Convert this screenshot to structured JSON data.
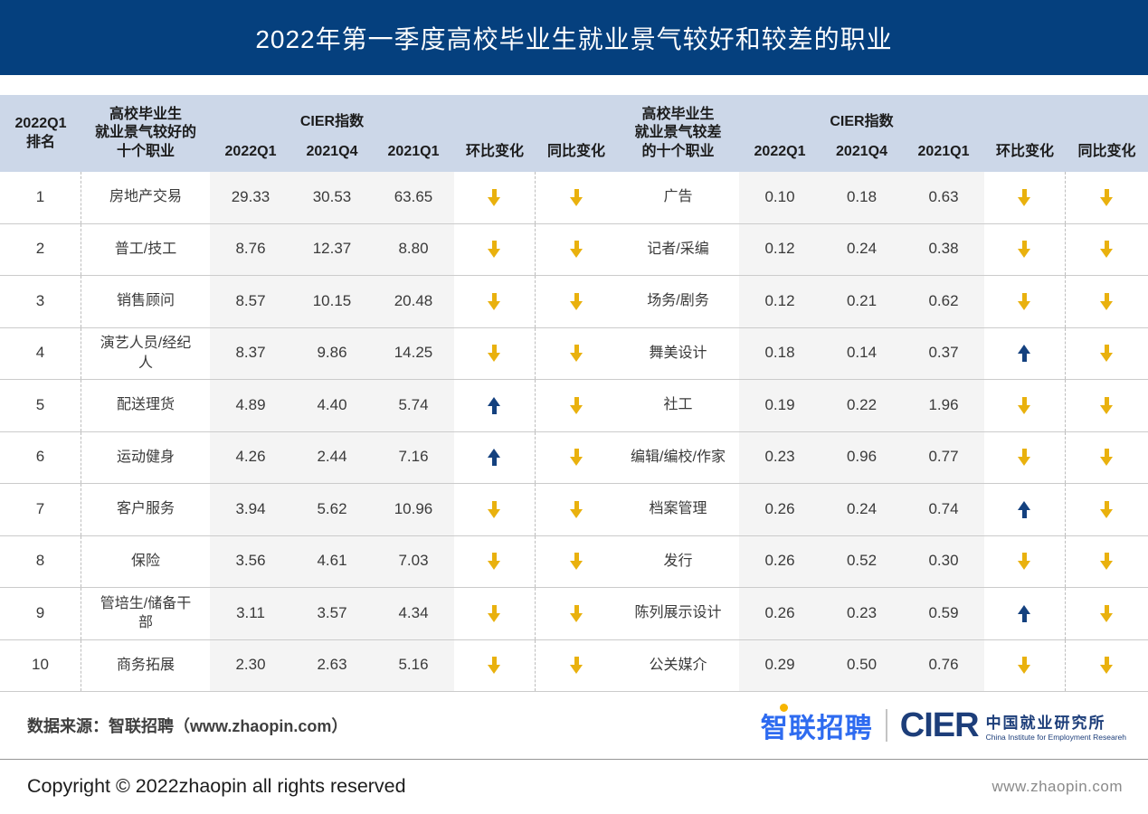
{
  "title": "2022年第一季度高校毕业生就业景气较好和较差的职业",
  "chart_data": {
    "type": "table",
    "title": "2022年第一季度高校毕业生就业景气较好和较差的职业",
    "headers": {
      "rank": [
        "2022Q1",
        "排名"
      ],
      "good_occupation": [
        "高校毕业生",
        "就业景气较好的",
        "十个职业"
      ],
      "bad_occupation": [
        "高校毕业生",
        "就业景气较差",
        "的十个职业"
      ],
      "cier_index": "CIER指数",
      "metrics": [
        "2022Q1",
        "2021Q4",
        "2021Q1",
        "环比变化",
        "同比变化"
      ]
    },
    "rows": [
      {
        "rank": "1",
        "good": {
          "occupation": "房地产交易",
          "cier_2022q1": "29.33",
          "cier_2021q4": "30.53",
          "cier_2021q1": "63.65",
          "mom": "down",
          "yoy": "down"
        },
        "bad": {
          "occupation": "广告",
          "cier_2022q1": "0.10",
          "cier_2021q4": "0.18",
          "cier_2021q1": "0.63",
          "mom": "down",
          "yoy": "down"
        }
      },
      {
        "rank": "2",
        "good": {
          "occupation": "普工/技工",
          "cier_2022q1": "8.76",
          "cier_2021q4": "12.37",
          "cier_2021q1": "8.80",
          "mom": "down",
          "yoy": "down"
        },
        "bad": {
          "occupation": "记者/采编",
          "cier_2022q1": "0.12",
          "cier_2021q4": "0.24",
          "cier_2021q1": "0.38",
          "mom": "down",
          "yoy": "down"
        }
      },
      {
        "rank": "3",
        "good": {
          "occupation": "销售顾问",
          "cier_2022q1": "8.57",
          "cier_2021q4": "10.15",
          "cier_2021q1": "20.48",
          "mom": "down",
          "yoy": "down"
        },
        "bad": {
          "occupation": "场务/剧务",
          "cier_2022q1": "0.12",
          "cier_2021q4": "0.21",
          "cier_2021q1": "0.62",
          "mom": "down",
          "yoy": "down"
        }
      },
      {
        "rank": "4",
        "good": {
          "occupation": "演艺人员/经纪人",
          "cier_2022q1": "8.37",
          "cier_2021q4": "9.86",
          "cier_2021q1": "14.25",
          "mom": "down",
          "yoy": "down"
        },
        "bad": {
          "occupation": "舞美设计",
          "cier_2022q1": "0.18",
          "cier_2021q4": "0.14",
          "cier_2021q1": "0.37",
          "mom": "up",
          "yoy": "down"
        }
      },
      {
        "rank": "5",
        "good": {
          "occupation": "配送理货",
          "cier_2022q1": "4.89",
          "cier_2021q4": "4.40",
          "cier_2021q1": "5.74",
          "mom": "up",
          "yoy": "down"
        },
        "bad": {
          "occupation": "社工",
          "cier_2022q1": "0.19",
          "cier_2021q4": "0.22",
          "cier_2021q1": "1.96",
          "mom": "down",
          "yoy": "down"
        }
      },
      {
        "rank": "6",
        "good": {
          "occupation": "运动健身",
          "cier_2022q1": "4.26",
          "cier_2021q4": "2.44",
          "cier_2021q1": "7.16",
          "mom": "up",
          "yoy": "down"
        },
        "bad": {
          "occupation": "编辑/编校/作家",
          "cier_2022q1": "0.23",
          "cier_2021q4": "0.96",
          "cier_2021q1": "0.77",
          "mom": "down",
          "yoy": "down"
        }
      },
      {
        "rank": "7",
        "good": {
          "occupation": "客户服务",
          "cier_2022q1": "3.94",
          "cier_2021q4": "5.62",
          "cier_2021q1": "10.96",
          "mom": "down",
          "yoy": "down"
        },
        "bad": {
          "occupation": "档案管理",
          "cier_2022q1": "0.26",
          "cier_2021q4": "0.24",
          "cier_2021q1": "0.74",
          "mom": "up",
          "yoy": "down"
        }
      },
      {
        "rank": "8",
        "good": {
          "occupation": "保险",
          "cier_2022q1": "3.56",
          "cier_2021q4": "4.61",
          "cier_2021q1": "7.03",
          "mom": "down",
          "yoy": "down"
        },
        "bad": {
          "occupation": "发行",
          "cier_2022q1": "0.26",
          "cier_2021q4": "0.52",
          "cier_2021q1": "0.30",
          "mom": "down",
          "yoy": "down"
        }
      },
      {
        "rank": "9",
        "good": {
          "occupation": "管培生/储备干部",
          "cier_2022q1": "3.11",
          "cier_2021q4": "3.57",
          "cier_2021q1": "4.34",
          "mom": "down",
          "yoy": "down"
        },
        "bad": {
          "occupation": "陈列展示设计",
          "cier_2022q1": "0.26",
          "cier_2021q4": "0.23",
          "cier_2021q1": "0.59",
          "mom": "up",
          "yoy": "down"
        }
      },
      {
        "rank": "10",
        "good": {
          "occupation": "商务拓展",
          "cier_2022q1": "2.30",
          "cier_2021q4": "2.63",
          "cier_2021q1": "5.16",
          "mom": "down",
          "yoy": "down"
        },
        "bad": {
          "occupation": "公关媒介",
          "cier_2022q1": "0.29",
          "cier_2021q4": "0.50",
          "cier_2021q1": "0.76",
          "mom": "down",
          "yoy": "down"
        }
      }
    ]
  },
  "footer": {
    "source_label": "数据来源：智联招聘（www.zhaopin.com）",
    "zhaopin_logo_text": "智联招聘",
    "cier_logo_text": "CIER",
    "cier_org_cn": "中国就业研究所",
    "cier_org_en": "China Institute for Employment Researeh",
    "copyright": "Copyright ©  2022zhaopin all rights reserved",
    "website": "www.zhaopin.com"
  },
  "colors": {
    "title_bar_bg": "#05407e",
    "title_text": "#ffffff",
    "header_bg": "#ccd7e8",
    "cier_column_bg": "#f4f4f4",
    "up_arrow": "#14417f",
    "down_arrow": "#e9b10e",
    "zhaopin_logo_blue": "#2e6bf0",
    "zhaopin_logo_yellow": "#f7b500",
    "cier_logo_navy": "#1d3e7a"
  }
}
